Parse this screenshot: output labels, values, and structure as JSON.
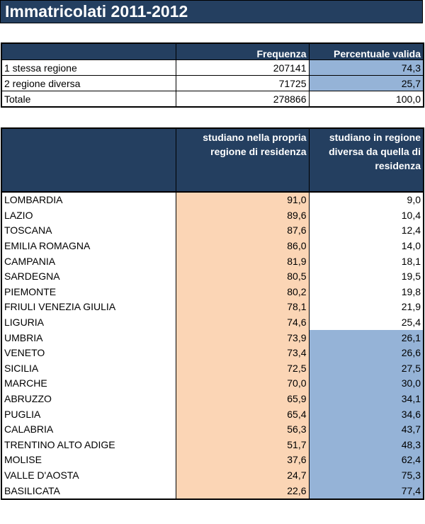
{
  "title": "Immatricolati 2011-2012",
  "summary": {
    "headers": [
      "",
      "Frequenza",
      "Percentuale valida"
    ],
    "rows": [
      {
        "label": "1 stessa regione",
        "freq": "207141",
        "pct": "74,3"
      },
      {
        "label": "2 regione diversa",
        "freq": "71725",
        "pct": "25,7"
      },
      {
        "label": "Totale",
        "freq": "278866",
        "pct": "100,0"
      }
    ]
  },
  "regions": {
    "col_same": "studiano nella propria regione di residenza",
    "col_other": "studiano in regione diversa da quella di residenza",
    "rows": [
      {
        "name": "LOMBARDIA",
        "same": "91,0",
        "other": "9,0"
      },
      {
        "name": "LAZIO",
        "same": "89,6",
        "other": "10,4"
      },
      {
        "name": "TOSCANA",
        "same": "87,6",
        "other": "12,4"
      },
      {
        "name": "EMILIA ROMAGNA",
        "same": "86,0",
        "other": "14,0"
      },
      {
        "name": "CAMPANIA",
        "same": "81,9",
        "other": "18,1"
      },
      {
        "name": "SARDEGNA",
        "same": "80,5",
        "other": "19,5"
      },
      {
        "name": "PIEMONTE",
        "same": "80,2",
        "other": "19,8"
      },
      {
        "name": "FRIULI VENEZIA GIULIA",
        "same": "78,1",
        "other": "21,9"
      },
      {
        "name": "LIGURIA",
        "same": "74,6",
        "other": "25,4"
      },
      {
        "name": "UMBRIA",
        "same": "73,9",
        "other": "26,1"
      },
      {
        "name": "VENETO",
        "same": "73,4",
        "other": "26,6"
      },
      {
        "name": "SICILIA",
        "same": "72,5",
        "other": "27,5"
      },
      {
        "name": "MARCHE",
        "same": "70,0",
        "other": "30,0"
      },
      {
        "name": "ABRUZZO",
        "same": "65,9",
        "other": "34,1"
      },
      {
        "name": "PUGLIA",
        "same": "65,4",
        "other": "34,6"
      },
      {
        "name": "CALABRIA",
        "same": "56,3",
        "other": "43,7"
      },
      {
        "name": "TRENTINO ALTO ADIGE",
        "same": "51,7",
        "other": "48,3"
      },
      {
        "name": "MOLISE",
        "same": "37,6",
        "other": "62,4"
      },
      {
        "name": "VALLE D'AOSTA",
        "same": "24,7",
        "other": "75,3"
      },
      {
        "name": "BASILICATA",
        "same": "22,6",
        "other": "77,4"
      }
    ]
  },
  "colors": {
    "header_bg": "#243f60",
    "same_region_fill": "#fbd5b5",
    "other_region_fill": "#95b3d7"
  }
}
